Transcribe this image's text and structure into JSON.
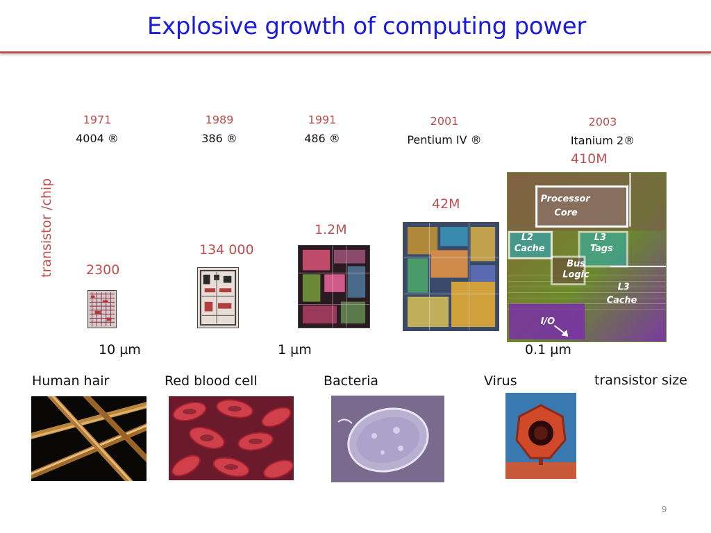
{
  "slide": {
    "title": "Explosive growth of computing power",
    "page_number": "9"
  },
  "y_axis_label": "transistor /chip",
  "processors": [
    {
      "year": "1971",
      "name": "4004 ®",
      "transistors": "2300"
    },
    {
      "year": "1989",
      "name": "386 ®",
      "transistors": "134 000"
    },
    {
      "year": "1991",
      "name": "486 ®",
      "transistors": "1.2M"
    },
    {
      "year": "2001",
      "name": "Pentium IV ®",
      "transistors": "42M"
    },
    {
      "year": "2003",
      "name": "Itanium 2®",
      "transistors": "410M"
    }
  ],
  "die_labels": {
    "processor": "Processor",
    "core": "Core",
    "l2": "L2",
    "l2_cache": "Cache",
    "l3": "L3",
    "tags": "Tags",
    "bus": "Bus",
    "logic": "Logic",
    "l3b": "L3",
    "l3_cache": "Cache",
    "io": "I/O"
  },
  "scale_marks": [
    {
      "label": "10 µm"
    },
    {
      "label": "1 µm"
    },
    {
      "label": "0.1 µm"
    }
  ],
  "objects": [
    {
      "label": "Human hair",
      "icon": "human-hair-photo"
    },
    {
      "label": "Red blood cell",
      "icon": "red-blood-cell-photo"
    },
    {
      "label": "Bacteria",
      "icon": "bacteria-photo"
    },
    {
      "label": "Virus",
      "icon": "virus-photo"
    }
  ],
  "transistor_size_label": "transistor size",
  "colors": {
    "title": "#1a1adc",
    "accent": "#c0504d"
  }
}
